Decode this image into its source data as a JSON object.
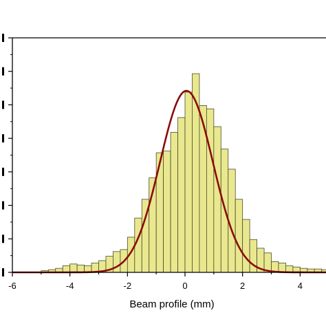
{
  "chart_data": {
    "type": "bar",
    "subtype": "histogram-with-gaussian-fit",
    "xlabel": "Beam profile (mm)",
    "ylabel": "",
    "xlim": [
      -6,
      6
    ],
    "ylim": [
      0,
      7
    ],
    "x_ticks": [
      "-6",
      "-4",
      "-2",
      "0",
      "2",
      "4"
    ],
    "y_tick_count": 8,
    "bin_width": 0.25,
    "bin_edges_start": -5.0,
    "bin_counts": [
      0.05,
      0.08,
      0.12,
      0.2,
      0.25,
      0.22,
      0.2,
      0.28,
      0.35,
      0.48,
      0.62,
      0.68,
      1.05,
      1.62,
      2.18,
      2.82,
      3.57,
      3.62,
      4.18,
      4.62,
      5.38,
      5.93,
      4.98,
      4.88,
      4.35,
      3.68,
      3.08,
      2.18,
      1.58,
      0.98,
      0.72,
      0.58,
      0.32,
      0.28,
      0.2,
      0.16,
      0.12,
      0.1,
      0.1,
      0.08
    ],
    "fit": {
      "model": "gaussian",
      "amplitude": 5.42,
      "mean": 0.05,
      "sigma": 0.92,
      "color": "#8b0a0a"
    },
    "colors": {
      "bar_fill": "#e9e88f",
      "bar_stroke": "#4a4a2a",
      "fit_line": "#8b0a0a"
    },
    "grid": false,
    "legend": "none"
  }
}
